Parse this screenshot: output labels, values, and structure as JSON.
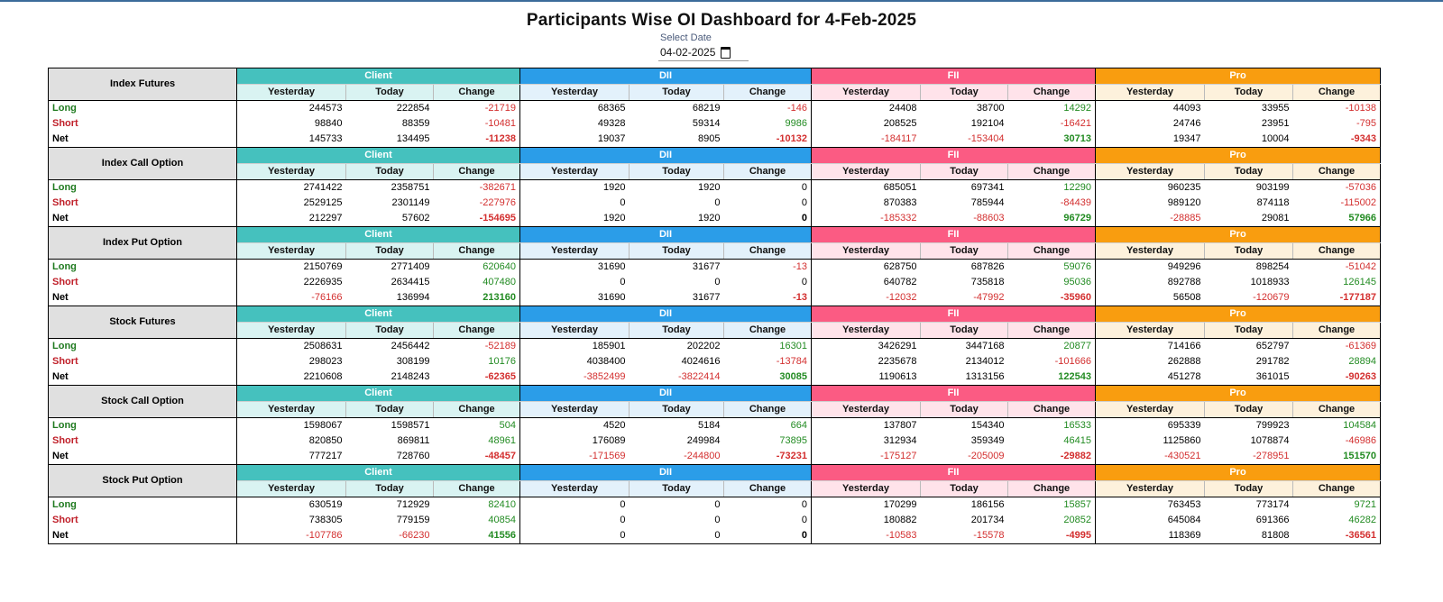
{
  "title": "Participants Wise OI Dashboard for 4-Feb-2025",
  "date_picker": {
    "label": "Select Date",
    "value": "04-02-2025"
  },
  "groups": [
    "Client",
    "DII",
    "FII",
    "Pro"
  ],
  "sub_headers": [
    "Yesterday",
    "Today",
    "Change"
  ],
  "row_labels": [
    "Long",
    "Short",
    "Net"
  ],
  "colors": {
    "client": "#45c1be",
    "dii": "#2b9de8",
    "fii": "#fb5b83",
    "pro": "#f99d0f",
    "long": "#1f7a1f",
    "short": "#c0202a"
  },
  "sections": [
    {
      "name": "Index Futures",
      "rows": [
        [
          "244573",
          "222854",
          "-21719",
          "68365",
          "68219",
          "-146",
          "24408",
          "38700",
          "14292",
          "44093",
          "33955",
          "-10138"
        ],
        [
          "98840",
          "88359",
          "-10481",
          "49328",
          "59314",
          "9986",
          "208525",
          "192104",
          "-16421",
          "24746",
          "23951",
          "-795"
        ],
        [
          "145733",
          "134495",
          "-11238",
          "19037",
          "8905",
          "-10132",
          "-184117",
          "-153404",
          "30713",
          "19347",
          "10004",
          "-9343"
        ]
      ]
    },
    {
      "name": "Index Call Option",
      "rows": [
        [
          "2741422",
          "2358751",
          "-382671",
          "1920",
          "1920",
          "0",
          "685051",
          "697341",
          "12290",
          "960235",
          "903199",
          "-57036"
        ],
        [
          "2529125",
          "2301149",
          "-227976",
          "0",
          "0",
          "0",
          "870383",
          "785944",
          "-84439",
          "989120",
          "874118",
          "-115002"
        ],
        [
          "212297",
          "57602",
          "-154695",
          "1920",
          "1920",
          "0",
          "-185332",
          "-88603",
          "96729",
          "-28885",
          "29081",
          "57966"
        ]
      ]
    },
    {
      "name": "Index Put Option",
      "rows": [
        [
          "2150769",
          "2771409",
          "620640",
          "31690",
          "31677",
          "-13",
          "628750",
          "687826",
          "59076",
          "949296",
          "898254",
          "-51042"
        ],
        [
          "2226935",
          "2634415",
          "407480",
          "0",
          "0",
          "0",
          "640782",
          "735818",
          "95036",
          "892788",
          "1018933",
          "126145"
        ],
        [
          "-76166",
          "136994",
          "213160",
          "31690",
          "31677",
          "-13",
          "-12032",
          "-47992",
          "-35960",
          "56508",
          "-120679",
          "-177187"
        ]
      ]
    },
    {
      "name": "Stock Futures",
      "rows": [
        [
          "2508631",
          "2456442",
          "-52189",
          "185901",
          "202202",
          "16301",
          "3426291",
          "3447168",
          "20877",
          "714166",
          "652797",
          "-61369"
        ],
        [
          "298023",
          "308199",
          "10176",
          "4038400",
          "4024616",
          "-13784",
          "2235678",
          "2134012",
          "-101666",
          "262888",
          "291782",
          "28894"
        ],
        [
          "2210608",
          "2148243",
          "-62365",
          "-3852499",
          "-3822414",
          "30085",
          "1190613",
          "1313156",
          "122543",
          "451278",
          "361015",
          "-90263"
        ]
      ]
    },
    {
      "name": "Stock Call Option",
      "rows": [
        [
          "1598067",
          "1598571",
          "504",
          "4520",
          "5184",
          "664",
          "137807",
          "154340",
          "16533",
          "695339",
          "799923",
          "104584"
        ],
        [
          "820850",
          "869811",
          "48961",
          "176089",
          "249984",
          "73895",
          "312934",
          "359349",
          "46415",
          "1125860",
          "1078874",
          "-46986"
        ],
        [
          "777217",
          "728760",
          "-48457",
          "-171569",
          "-244800",
          "-73231",
          "-175127",
          "-205009",
          "-29882",
          "-430521",
          "-278951",
          "151570"
        ]
      ]
    },
    {
      "name": "Stock Put Option",
      "rows": [
        [
          "630519",
          "712929",
          "82410",
          "0",
          "0",
          "0",
          "170299",
          "186156",
          "15857",
          "763453",
          "773174",
          "9721"
        ],
        [
          "738305",
          "779159",
          "40854",
          "0",
          "0",
          "0",
          "180882",
          "201734",
          "20852",
          "645084",
          "691366",
          "46282"
        ],
        [
          "-107786",
          "-66230",
          "41556",
          "0",
          "0",
          "0",
          "-10583",
          "-15578",
          "-4995",
          "118369",
          "81808",
          "-36561"
        ]
      ]
    }
  ]
}
